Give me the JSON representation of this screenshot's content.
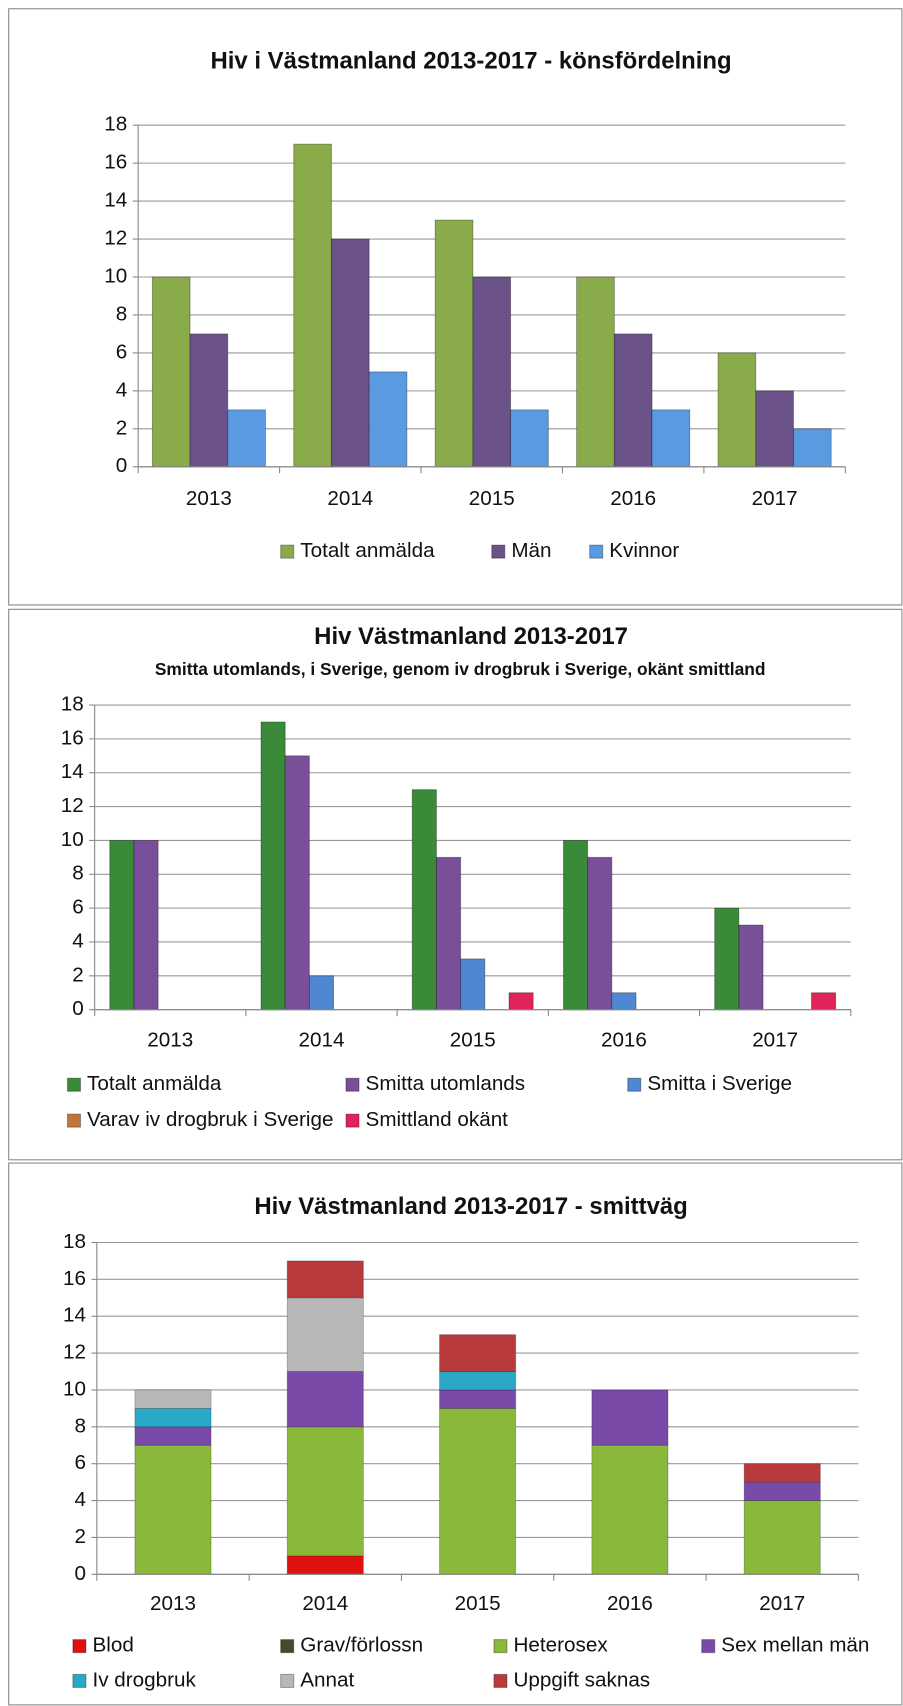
{
  "chart_data": [
    {
      "type": "bar",
      "title": "Hiv i Västmanland 2013-2017 - könsfördelning",
      "categories": [
        "2013",
        "2014",
        "2015",
        "2016",
        "2017"
      ],
      "series": [
        {
          "name": "Totalt anmälda",
          "color": "#8aab49",
          "values": [
            10,
            17,
            13,
            10,
            6
          ]
        },
        {
          "name": "Män",
          "color": "#6b5288",
          "values": [
            7,
            12,
            10,
            7,
            4
          ]
        },
        {
          "name": "Kvinnor",
          "color": "#5a9ae0",
          "values": [
            3,
            5,
            3,
            3,
            2
          ]
        }
      ],
      "ylim": [
        0,
        18
      ],
      "yticks": [
        0,
        2,
        4,
        6,
        8,
        10,
        12,
        14,
        16,
        18
      ],
      "grid": true,
      "legend": "bottom"
    },
    {
      "type": "bar",
      "title": "Hiv Västmanland 2013-2017",
      "subtitle": "Smitta utomlands, i Sverige, genom iv drogbruk i Sverige, okänt smittland",
      "categories": [
        "2013",
        "2014",
        "2015",
        "2016",
        "2017"
      ],
      "series": [
        {
          "name": "Totalt anmälda",
          "color": "#3a8a3a",
          "values": [
            10,
            17,
            13,
            10,
            6
          ]
        },
        {
          "name": "Smitta utomlands",
          "color": "#7a4f9a",
          "values": [
            10,
            15,
            9,
            9,
            5
          ]
        },
        {
          "name": "Smitta i Sverige",
          "color": "#4f88d0",
          "values": [
            0,
            2,
            3,
            1,
            0
          ]
        },
        {
          "name": "Varav iv drogbruk i Sverige",
          "color": "#c0763a",
          "values": [
            0,
            0,
            0,
            0,
            0
          ]
        },
        {
          "name": "Smittland okänt",
          "color": "#e0245a",
          "values": [
            0,
            0,
            1,
            0,
            1
          ]
        }
      ],
      "ylim": [
        0,
        18
      ],
      "yticks": [
        0,
        2,
        4,
        6,
        8,
        10,
        12,
        14,
        16,
        18
      ],
      "grid": true,
      "legend": "bottom"
    },
    {
      "type": "stacked_bar",
      "title": "Hiv Västmanland 2013-2017 - smittväg",
      "categories": [
        "2013",
        "2014",
        "2015",
        "2016",
        "2017"
      ],
      "series": [
        {
          "name": "Blod",
          "color": "#e01010",
          "values": [
            0,
            1,
            0,
            0,
            0
          ]
        },
        {
          "name": "Grav/förlossn",
          "color": "#4a4a2a",
          "values": [
            0,
            0,
            0,
            0,
            0
          ]
        },
        {
          "name": "Heterosex",
          "color": "#8ab83a",
          "values": [
            7,
            7,
            9,
            7,
            4
          ]
        },
        {
          "name": "Sex mellan män",
          "color": "#7a4aa8",
          "values": [
            1,
            3,
            1,
            3,
            1
          ]
        },
        {
          "name": "Iv drogbruk",
          "color": "#2aa8c8",
          "values": [
            1,
            0,
            1,
            0,
            0
          ]
        },
        {
          "name": "Annat",
          "color": "#b8b8b8",
          "values": [
            1,
            4,
            0,
            0,
            0
          ]
        },
        {
          "name": "Uppgift saknas",
          "color": "#b83a3a",
          "values": [
            0,
            2,
            2,
            0,
            1
          ]
        }
      ],
      "ylim": [
        0,
        18
      ],
      "yticks": [
        0,
        2,
        4,
        6,
        8,
        10,
        12,
        14,
        16,
        18
      ],
      "grid": true,
      "legend": "bottom"
    }
  ]
}
